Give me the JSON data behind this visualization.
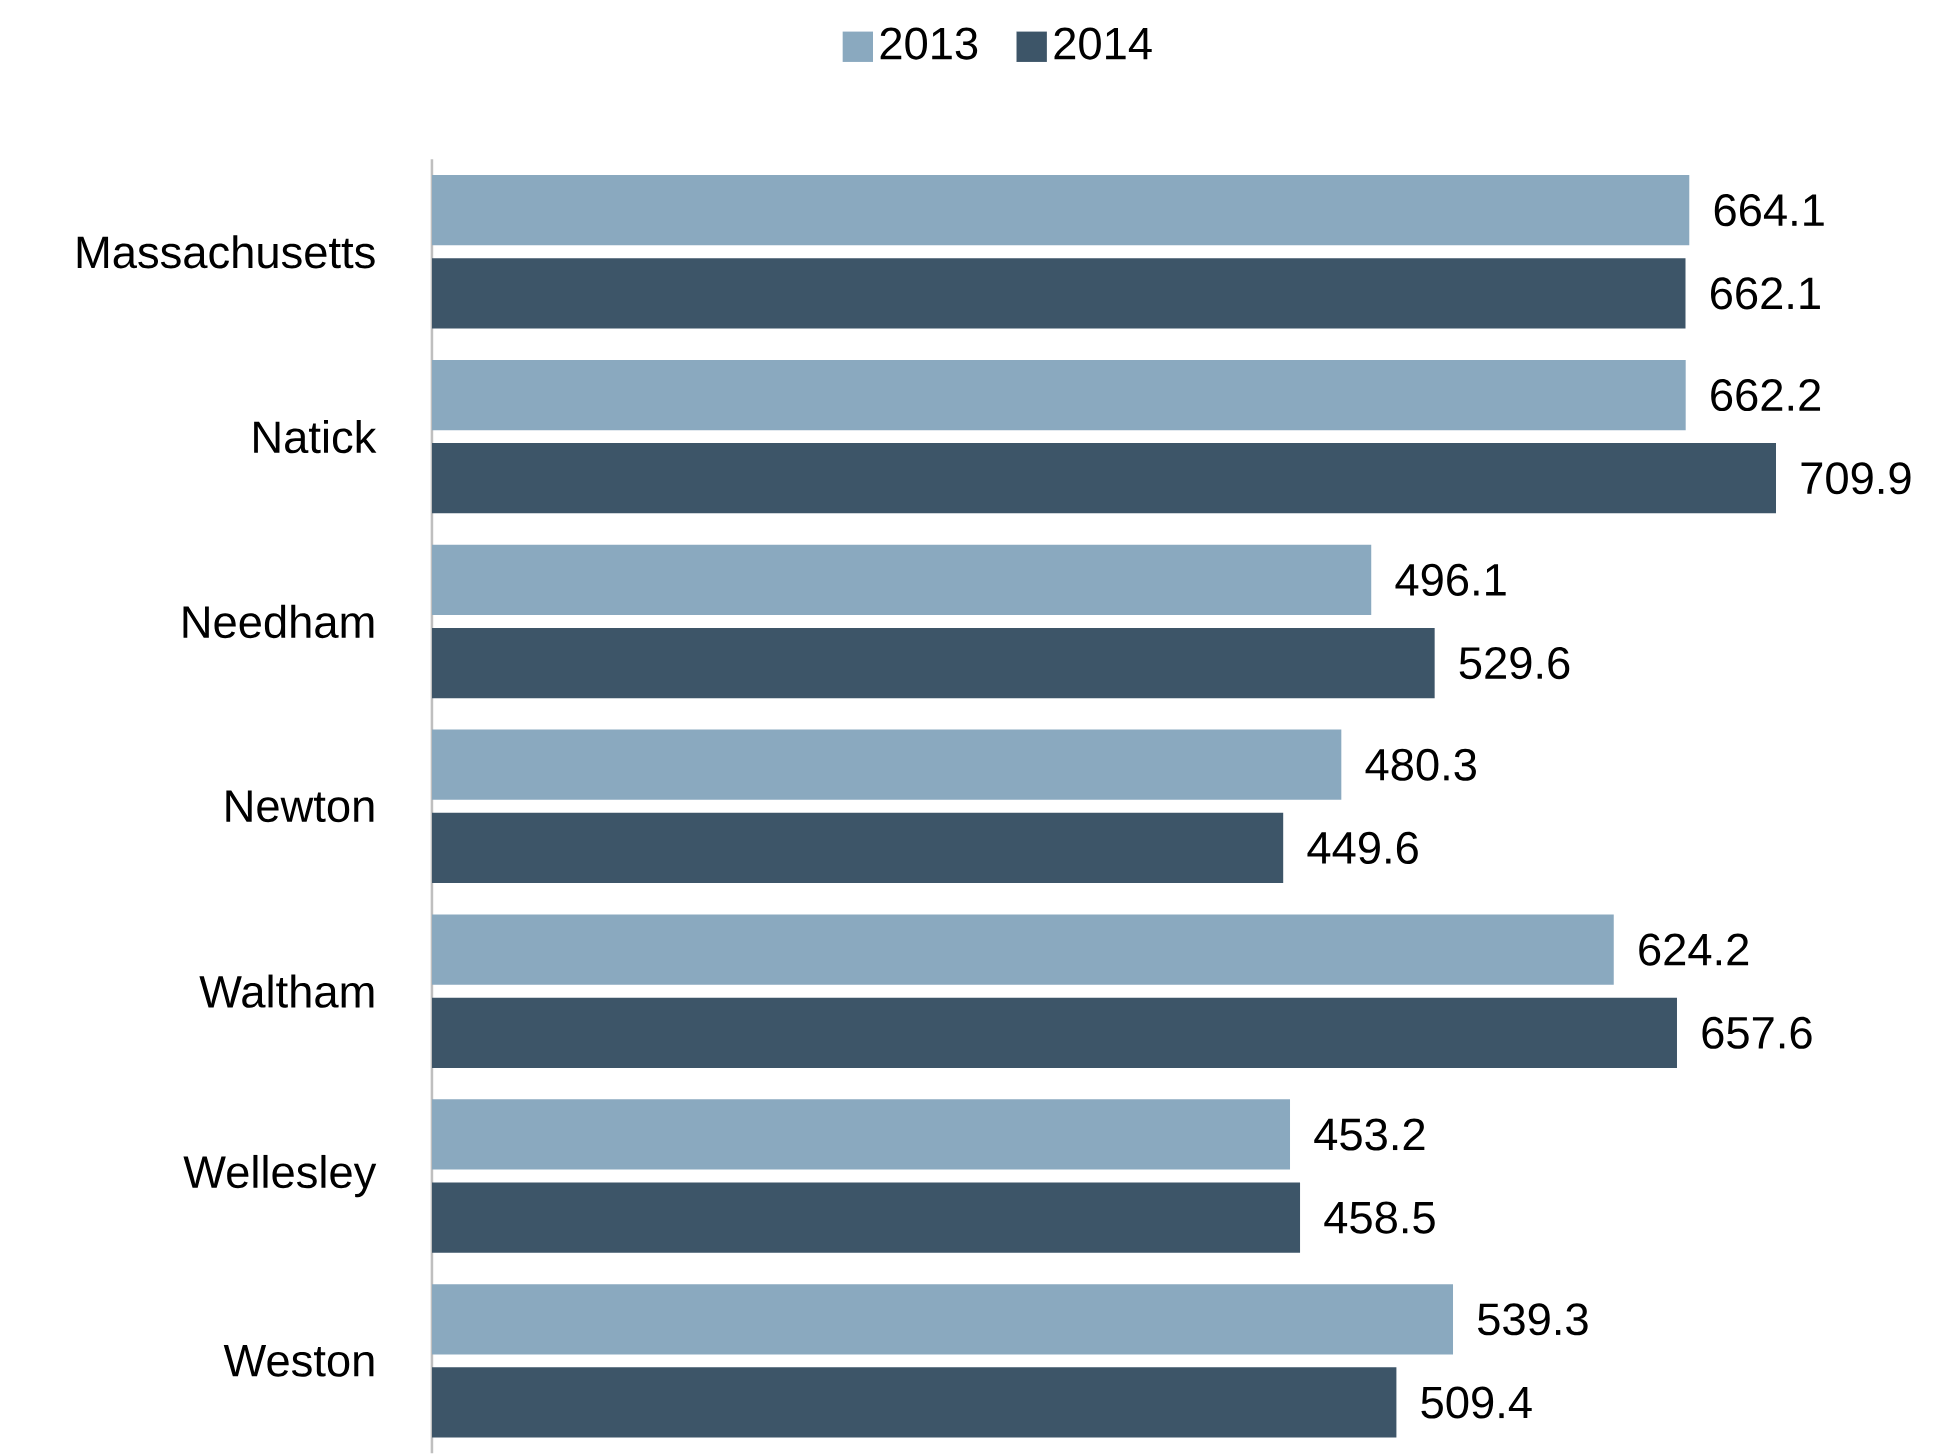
{
  "chart_data": {
    "type": "bar",
    "orientation": "horizontal",
    "categories": [
      "Massachusetts",
      "Natick",
      "Needham",
      "Newton",
      "Waltham",
      "Wellesley",
      "Weston"
    ],
    "series": [
      {
        "name": "2013",
        "color": "#8aa9bf",
        "values": [
          664.1,
          662.2,
          496.1,
          480.3,
          624.2,
          453.2,
          539.3
        ]
      },
      {
        "name": "2014",
        "color": "#3d5568",
        "values": [
          662.1,
          709.9,
          529.6,
          449.6,
          657.6,
          458.5,
          509.4
        ]
      }
    ],
    "data_labels": true,
    "legend": "top"
  }
}
